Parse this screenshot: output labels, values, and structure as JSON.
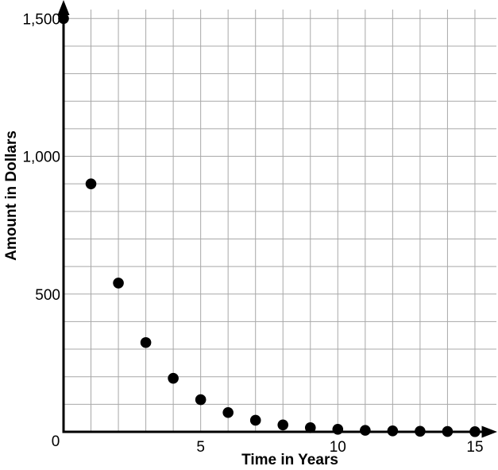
{
  "chart_data": {
    "type": "scatter",
    "title": "",
    "xlabel": "Time in Years",
    "ylabel": "Amount in Dollars",
    "x": [
      0,
      1,
      2,
      3,
      4,
      5,
      6,
      7,
      8,
      9,
      10,
      11,
      12,
      13,
      14,
      15
    ],
    "y": [
      1500,
      900,
      540,
      324,
      194.4,
      116.6,
      70,
      42,
      25.2,
      15.1,
      9.1,
      5.4,
      3.3,
      2,
      1.2,
      0.7
    ],
    "xlim": [
      0,
      15
    ],
    "ylim": [
      0,
      1500
    ],
    "grid": true,
    "x_grid_step": 1,
    "y_grid_step": 100,
    "legend_position": "none",
    "origin_label": "0",
    "x_ticks": [
      {
        "v": 5,
        "label": "5"
      },
      {
        "v": 10,
        "label": "10"
      },
      {
        "v": 15,
        "label": "15"
      }
    ],
    "y_ticks": [
      {
        "v": 500,
        "label": "500"
      },
      {
        "v": 1000,
        "label": "1,000"
      },
      {
        "v": 1500,
        "label": "1,500"
      }
    ],
    "colors": {
      "point": "#000000",
      "axis": "#000000",
      "grid": "#a8a8a8",
      "text": "#000000",
      "background": "#ffffff"
    }
  }
}
